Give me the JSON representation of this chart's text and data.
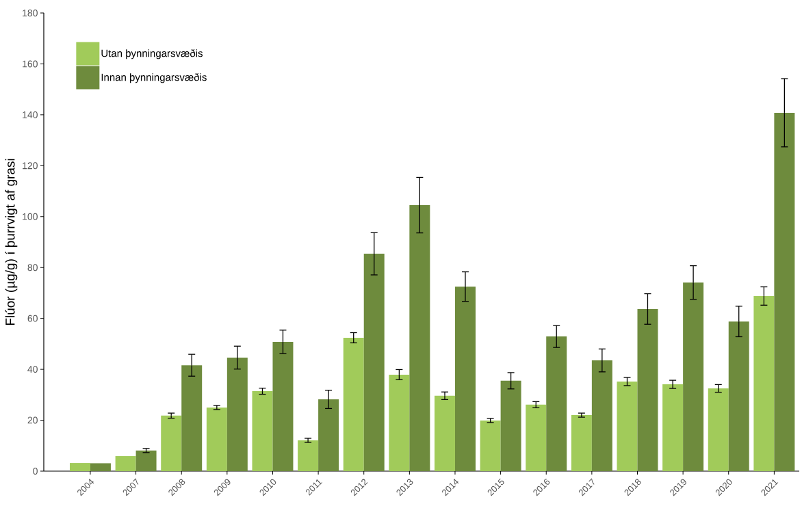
{
  "chart_data": {
    "type": "bar",
    "ylabel": "Flúor (µg/g) í þurrvigt af grasi",
    "categories": [
      "2004",
      "2007",
      "2008",
      "2009",
      "2010",
      "2011",
      "2012",
      "2013",
      "2014",
      "2015",
      "2016",
      "2017",
      "2018",
      "2019",
      "2020",
      "2021"
    ],
    "series": [
      {
        "name": "Utan þynningarsvæðis",
        "color": "#a1cb5a",
        "values": [
          3.2,
          5.9,
          21.8,
          25.0,
          31.4,
          12.1,
          52.4,
          37.9,
          29.6,
          19.9,
          26.1,
          22.0,
          35.2,
          34.1,
          32.5,
          68.8
        ],
        "errors": [
          null,
          null,
          1.0,
          0.8,
          1.2,
          0.8,
          2.0,
          2.0,
          1.5,
          0.8,
          1.2,
          0.8,
          1.6,
          1.6,
          1.5,
          3.6
        ]
      },
      {
        "name": "Innan þynningarsvæðis",
        "color": "#6e8b3d",
        "values": [
          3.1,
          8.1,
          41.6,
          44.6,
          50.8,
          28.2,
          85.4,
          104.5,
          72.5,
          35.5,
          52.9,
          43.5,
          63.7,
          74.1,
          58.8,
          140.8
        ],
        "errors": [
          null,
          0.8,
          4.3,
          4.5,
          4.6,
          3.6,
          8.3,
          10.9,
          5.8,
          3.2,
          4.3,
          4.5,
          6.0,
          6.6,
          6.0,
          13.4
        ]
      }
    ],
    "ylim": [
      0,
      180
    ],
    "yticks": [
      0,
      20,
      40,
      60,
      80,
      100,
      120,
      140,
      160,
      180
    ],
    "grid": false,
    "legend": "top left"
  }
}
